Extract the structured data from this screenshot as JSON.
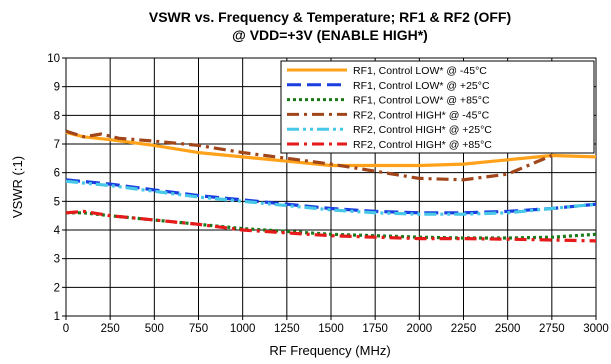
{
  "chart_data": {
    "type": "line",
    "title": "VSWR vs. Frequency & Temperature; RF1 & RF2 (OFF)",
    "subtitle": "@ VDD=+3V (ENABLE HIGH*)",
    "xlabel": "RF Frequency (MHz)",
    "ylabel": "VSWR (:1)",
    "xlim": [
      0,
      3000
    ],
    "ylim": [
      1,
      10
    ],
    "xticks": [
      "0",
      "250",
      "500",
      "750",
      "1000",
      "1250",
      "1500",
      "1750",
      "2000",
      "2250",
      "2500",
      "2750",
      "3000"
    ],
    "yticks": [
      "1",
      "2",
      "3",
      "4",
      "5",
      "6",
      "7",
      "8",
      "9",
      "10"
    ],
    "grid": true,
    "legend_position": "top-right",
    "series": [
      {
        "name": "RF1, Control LOW* @ -45°C",
        "color": "#ffa21a",
        "dash": "solid",
        "x": [
          0,
          100,
          250,
          500,
          750,
          1000,
          1250,
          1500,
          1750,
          2000,
          2250,
          2500,
          2750,
          3000
        ],
        "y": [
          7.4,
          7.25,
          7.15,
          6.95,
          6.7,
          6.55,
          6.4,
          6.25,
          6.25,
          6.25,
          6.3,
          6.45,
          6.6,
          6.55
        ]
      },
      {
        "name": "RF1, Control LOW* @ +25°C",
        "color": "#1a3ee0",
        "dash": "longdash",
        "x": [
          0,
          250,
          500,
          750,
          1000,
          1250,
          1500,
          1750,
          2000,
          2250,
          2500,
          2750,
          3000
        ],
        "y": [
          5.75,
          5.6,
          5.4,
          5.2,
          5.05,
          4.9,
          4.75,
          4.65,
          4.6,
          4.6,
          4.65,
          4.75,
          4.9
        ]
      },
      {
        "name": "RF1, Control LOW* @ +85°C",
        "color": "#1a7a1a",
        "dash": "dotted",
        "x": [
          0,
          100,
          250,
          500,
          750,
          1000,
          1250,
          1500,
          1750,
          2000,
          2250,
          2500,
          2750,
          3000
        ],
        "y": [
          4.6,
          4.6,
          4.5,
          4.35,
          4.2,
          4.05,
          3.95,
          3.85,
          3.8,
          3.75,
          3.72,
          3.72,
          3.75,
          3.85
        ]
      },
      {
        "name": "RF2, Control HIGH* @ -45°C",
        "color": "#a0461a",
        "dash": "dashdot",
        "x": [
          0,
          100,
          200,
          300,
          500,
          750,
          1000,
          1250,
          1500,
          1750,
          2000,
          2250,
          2500,
          2750
        ],
        "y": [
          7.45,
          7.25,
          7.35,
          7.2,
          7.1,
          6.95,
          6.7,
          6.5,
          6.3,
          6.05,
          5.8,
          5.75,
          5.95,
          6.6
        ]
      },
      {
        "name": "RF2, Control HIGH* @ +25°C",
        "color": "#46c8e6",
        "dash": "dashdotdot",
        "x": [
          0,
          250,
          500,
          750,
          1000,
          1250,
          1500,
          1750,
          2000,
          2250,
          2500,
          2750,
          3000
        ],
        "y": [
          5.7,
          5.55,
          5.35,
          5.15,
          5.0,
          4.85,
          4.7,
          4.6,
          4.55,
          4.55,
          4.6,
          4.75,
          4.9
        ]
      },
      {
        "name": "RF2, Control HIGH* @ +85°C",
        "color": "#e61a1a",
        "dash": "dashdot",
        "x": [
          0,
          100,
          250,
          500,
          750,
          1000,
          1250,
          1500,
          1750,
          2000,
          2250,
          2500,
          2750,
          3000
        ],
        "y": [
          4.6,
          4.65,
          4.5,
          4.35,
          4.2,
          4.0,
          3.9,
          3.8,
          3.75,
          3.7,
          3.7,
          3.68,
          3.65,
          3.62
        ]
      }
    ]
  }
}
